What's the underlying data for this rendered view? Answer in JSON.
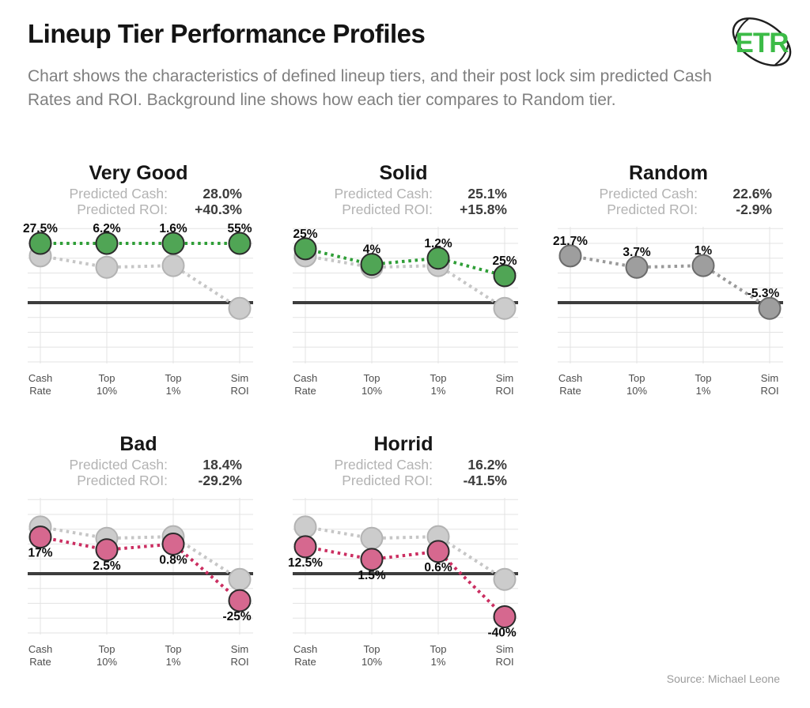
{
  "header": {
    "title": "Lineup Tier Performance Profiles",
    "subtitle": "Chart shows the characteristics of defined lineup tiers, and their post lock sim predicted Cash Rates and ROI. Background line shows how each tier compares to Random tier.",
    "logo_text": "ETR"
  },
  "footer": {
    "source": "Source: Michael Leone"
  },
  "panel_labels": {
    "predicted_cash": "Predicted Cash:",
    "predicted_roi": "Predicted ROI:"
  },
  "colors": {
    "good_fill": "#50a555",
    "good_line": "#2f9e37",
    "bad_fill": "#d6688f",
    "bad_line": "#cb2e61",
    "background_fill": "#cccccc",
    "background_line": "#c6c6c6",
    "background_stroke": "#b3b3b3",
    "random_fill": "#9e9e9e",
    "random_line": "#9a9a9a",
    "random_stroke": "#6b6b6b",
    "point_stroke": "#2b2b2b",
    "zero_line": "#3d3d3d",
    "grid": "#e3e3e3",
    "label_text": "#0d0d0d",
    "logo_green": "#3cbb47"
  },
  "chart_data": {
    "type": "line",
    "categories": [
      "Cash Rate",
      "Top 10%",
      "Top 1%",
      "Sim ROI"
    ],
    "category_tick_lines": [
      [
        "Cash",
        "Rate"
      ],
      [
        "Top",
        "10%"
      ],
      [
        "Top",
        "1%"
      ],
      [
        "Sim",
        "ROI"
      ]
    ],
    "zero_baseline": 0,
    "normalization": "each metric column is scaled to its maximum across tiers; the thick dark horizontal line marks 0 for every column",
    "background_series": {
      "name": "Random tier baseline",
      "values": [
        21.7,
        3.7,
        1.0,
        -5.3
      ]
    },
    "panels": [
      {
        "title": "Very Good",
        "predicted_cash": "28.0%",
        "predicted_roi": "+40.3%",
        "style": "good",
        "values": [
          27.5,
          6.2,
          1.6,
          55
        ],
        "point_labels": [
          "27.5%",
          "6.2%",
          "1.6%",
          "55%"
        ],
        "label_side": "above",
        "show_background": true
      },
      {
        "title": "Solid",
        "predicted_cash": "25.1%",
        "predicted_roi": "+15.8%",
        "style": "good",
        "values": [
          25,
          4,
          1.2,
          25
        ],
        "point_labels": [
          "25%",
          "4%",
          "1.2%",
          "25%"
        ],
        "label_side": "above",
        "show_background": true
      },
      {
        "title": "Random",
        "predicted_cash": "22.6%",
        "predicted_roi": "-2.9%",
        "style": "random",
        "values": [
          21.7,
          3.7,
          1.0,
          -5.3
        ],
        "point_labels": [
          "21.7%",
          "3.7%",
          "1%",
          "-5.3%"
        ],
        "label_side": "above",
        "show_background": false
      },
      {
        "title": "Bad",
        "predicted_cash": "18.4%",
        "predicted_roi": "-29.2%",
        "style": "bad",
        "values": [
          17,
          2.5,
          0.8,
          -25
        ],
        "point_labels": [
          "17%",
          "2.5%",
          "0.8%",
          "-25%"
        ],
        "label_side": "below",
        "show_background": true
      },
      {
        "title": "Horrid",
        "predicted_cash": "16.2%",
        "predicted_roi": "-41.5%",
        "style": "bad",
        "values": [
          12.5,
          1.5,
          0.6,
          -40
        ],
        "point_labels": [
          "12.5%",
          "1.5%",
          "0.6%",
          "-40%"
        ],
        "label_side": "below",
        "show_background": true
      }
    ]
  }
}
